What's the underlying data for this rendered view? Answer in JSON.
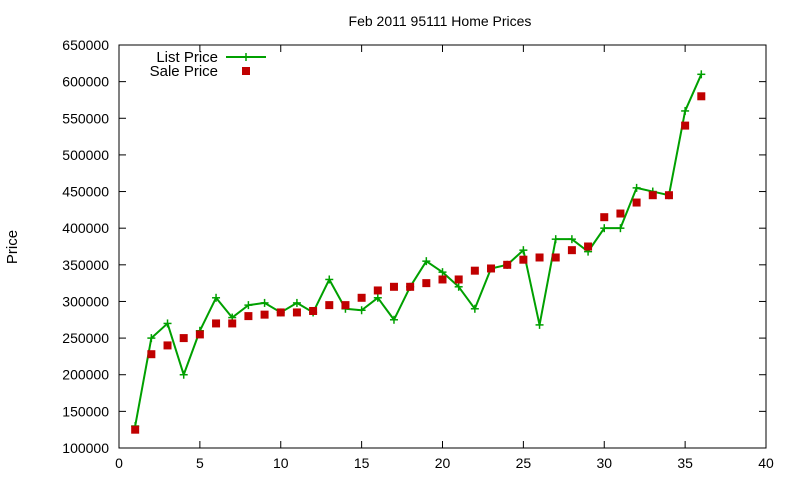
{
  "chart_data": {
    "type": "line",
    "title": "Feb 2011 95111 Home Prices",
    "xlabel": "",
    "ylabel": "Price",
    "xlim": [
      0,
      40
    ],
    "ylim": [
      100000,
      650000
    ],
    "xticks": [
      0,
      5,
      10,
      15,
      20,
      25,
      30,
      35,
      40
    ],
    "yticks": [
      100000,
      150000,
      200000,
      250000,
      300000,
      350000,
      400000,
      450000,
      500000,
      550000,
      600000,
      650000
    ],
    "x_tick_labels": [
      "0",
      "5",
      "10",
      "15",
      "20",
      "25",
      "30",
      "35",
      "40"
    ],
    "y_tick_labels": [
      "100000",
      "150000",
      "200000",
      "250000",
      "300000",
      "350000",
      "400000",
      "450000",
      "500000",
      "550000",
      "600000",
      "650000"
    ],
    "grid": false,
    "legend_position": "top-left",
    "series": [
      {
        "name": "List Price",
        "style": "line+plus",
        "color": "#00a000",
        "x": [
          1,
          2,
          3,
          4,
          5,
          6,
          7,
          8,
          9,
          10,
          11,
          12,
          13,
          14,
          15,
          16,
          17,
          18,
          19,
          20,
          21,
          22,
          23,
          24,
          25,
          26,
          27,
          28,
          29,
          30,
          31,
          32,
          33,
          34,
          35,
          36
        ],
        "y": [
          130000,
          250000,
          270000,
          200000,
          260000,
          305000,
          278000,
          295000,
          298000,
          285000,
          298000,
          285000,
          330000,
          290000,
          288000,
          305000,
          275000,
          320000,
          355000,
          340000,
          320000,
          290000,
          345000,
          350000,
          370000,
          268000,
          385000,
          385000,
          368000,
          400000,
          400000,
          455000,
          450000,
          445000,
          560000,
          610000
        ]
      },
      {
        "name": "Sale Price",
        "style": "square",
        "color": "#c00000",
        "x": [
          1,
          2,
          3,
          4,
          5,
          6,
          7,
          8,
          9,
          10,
          11,
          12,
          13,
          14,
          15,
          16,
          17,
          18,
          19,
          20,
          21,
          22,
          23,
          24,
          25,
          26,
          27,
          28,
          29,
          30,
          31,
          32,
          33,
          34,
          35,
          36
        ],
        "y": [
          125000,
          228000,
          240000,
          250000,
          255000,
          270000,
          270000,
          280000,
          282000,
          285000,
          285000,
          287000,
          295000,
          295000,
          305000,
          315000,
          320000,
          320000,
          325000,
          330000,
          330000,
          342000,
          345000,
          350000,
          357000,
          360000,
          360000,
          370000,
          375000,
          415000,
          420000,
          435000,
          445000,
          445000,
          540000,
          580000
        ]
      }
    ]
  }
}
